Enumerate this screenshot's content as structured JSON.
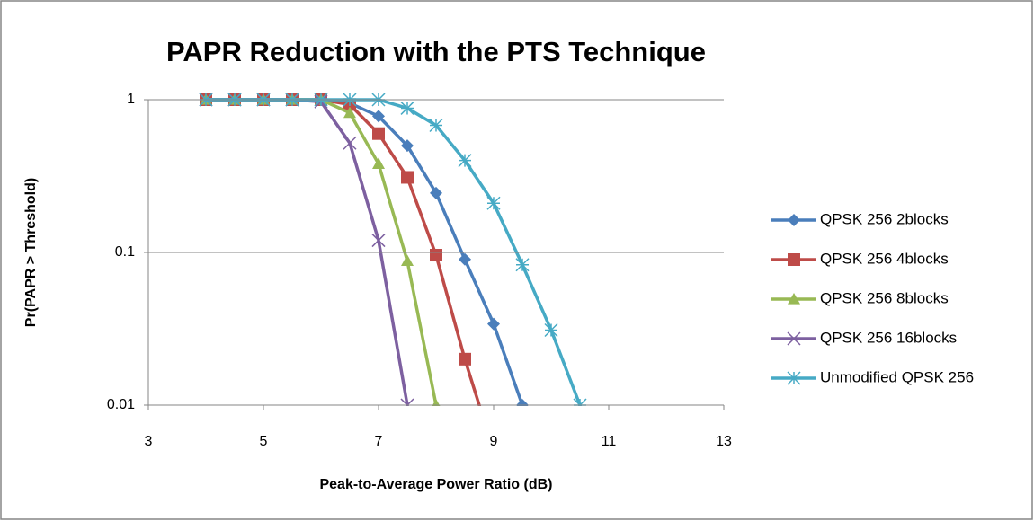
{
  "chart_data": {
    "type": "line",
    "title": "PAPR Reduction with the PTS Technique",
    "x_label": "Peak-to-Average Power Ratio (dB)",
    "y_label": "Pr(PAPR > Threshold)",
    "xlim": [
      3,
      13
    ],
    "xticks": [
      3,
      5,
      7,
      9,
      11,
      13
    ],
    "ylim": [
      0.01,
      1
    ],
    "yticks": [
      0.01,
      0.1,
      1
    ],
    "log_y": true,
    "grid": true,
    "legend": "right",
    "series": [
      {
        "name": "QPSK 256 2blocks",
        "color": "#4a7ebb",
        "marker": "diamond",
        "x": [
          4,
          4.5,
          5,
          5.5,
          6,
          6.5,
          7,
          7.5,
          8,
          8.5,
          9,
          9.5
        ],
        "values": [
          1,
          1,
          1,
          1,
          1,
          0.95,
          0.78,
          0.5,
          0.245,
          0.09,
          0.034,
          0.01
        ]
      },
      {
        "name": "QPSK 256 4blocks",
        "color": "#be4b48",
        "marker": "square",
        "x": [
          4,
          4.5,
          5,
          5.5,
          6,
          6.5,
          7,
          7.5,
          8,
          8.5,
          9
        ],
        "values": [
          1,
          1,
          1,
          1,
          1,
          0.93,
          0.6,
          0.31,
          0.096,
          0.02,
          0.005
        ]
      },
      {
        "name": "QPSK 256 8blocks",
        "color": "#98b954",
        "marker": "triangle",
        "x": [
          4,
          4.5,
          5,
          5.5,
          6,
          6.5,
          7,
          7.5,
          8
        ],
        "values": [
          1,
          1,
          1,
          1,
          1,
          0.82,
          0.38,
          0.088,
          0.01
        ]
      },
      {
        "name": "QPSK 256 16blocks",
        "color": "#7d60a0",
        "marker": "x",
        "x": [
          4,
          4.5,
          5,
          5.5,
          6,
          6.5,
          7,
          7.5
        ],
        "values": [
          1,
          1,
          1,
          1,
          0.97,
          0.52,
          0.12,
          0.01
        ]
      },
      {
        "name": "Unmodified QPSK 256",
        "color": "#46aac5",
        "marker": "star",
        "x": [
          4,
          4.5,
          5,
          5.5,
          6,
          6.5,
          7,
          7.5,
          8,
          8.5,
          9,
          9.5,
          10,
          10.5
        ],
        "values": [
          1,
          1,
          1,
          1,
          1,
          1,
          1,
          0.88,
          0.68,
          0.4,
          0.21,
          0.083,
          0.031,
          0.01
        ]
      }
    ]
  }
}
